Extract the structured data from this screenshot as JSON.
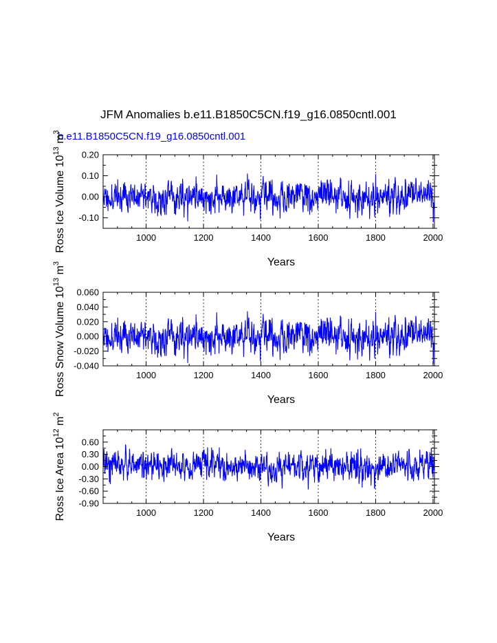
{
  "title": "JFM Anomalies b.e11.B1850C5CN.f19_g16.0850cntl.001",
  "case_label": "b.e11.B1850C5CN.f19_g16.0850cntl.001",
  "line_color": "#0000ff",
  "chart_data": [
    {
      "type": "line",
      "name": "ross-ice-volume",
      "ylabel_main": "Ross Ice Volume 10",
      "ylabel_exp": "13",
      "ylabel_unit": " m",
      "ylabel_unit_exp": "3",
      "xlabel": "Years",
      "xlim": [
        850,
        2005
      ],
      "ylim": [
        -0.15,
        0.2
      ],
      "x_ticks": [
        1000,
        1200,
        1400,
        1600,
        1800,
        2000
      ],
      "y_ticks": [
        -0.1,
        0.0,
        0.1,
        0.2
      ],
      "y_tick_labels": [
        "-0.10",
        "0.00",
        "0.10",
        "0.20"
      ],
      "amplitude": 0.042,
      "seed": 11,
      "grid": "vertical dashed at x ticks"
    },
    {
      "type": "line",
      "name": "ross-snow-volume",
      "ylabel_main": "Ross Snow Volume 10",
      "ylabel_exp": "13",
      "ylabel_unit": " m",
      "ylabel_unit_exp": "3",
      "xlabel": "Years",
      "xlim": [
        850,
        2005
      ],
      "ylim": [
        -0.04,
        0.06
      ],
      "x_ticks": [
        1000,
        1200,
        1400,
        1600,
        1800,
        2000
      ],
      "y_ticks": [
        -0.04,
        -0.02,
        0.0,
        0.02,
        0.04,
        0.06
      ],
      "y_tick_labels": [
        "-0.040",
        "-0.020",
        "0.000",
        "0.020",
        "0.040",
        "0.060"
      ],
      "amplitude": 0.013,
      "seed": 11,
      "grid": "vertical dashed at x ticks"
    },
    {
      "type": "line",
      "name": "ross-ice-area",
      "ylabel_main": "Ross Ice Area 10",
      "ylabel_exp": "12",
      "ylabel_unit": " m",
      "ylabel_unit_exp": "2",
      "xlabel": "Years",
      "xlim": [
        850,
        2005
      ],
      "ylim": [
        -0.9,
        0.9
      ],
      "x_ticks": [
        1000,
        1200,
        1400,
        1600,
        1800,
        2000
      ],
      "y_ticks": [
        -0.9,
        -0.6,
        -0.3,
        0.0,
        0.3,
        0.6
      ],
      "y_tick_labels": [
        "-0.90",
        "-0.60",
        "-0.30",
        "0.00",
        "0.30",
        "0.60"
      ],
      "amplitude": 0.2,
      "seed": 57,
      "grid": "vertical dashed at x ticks"
    }
  ]
}
